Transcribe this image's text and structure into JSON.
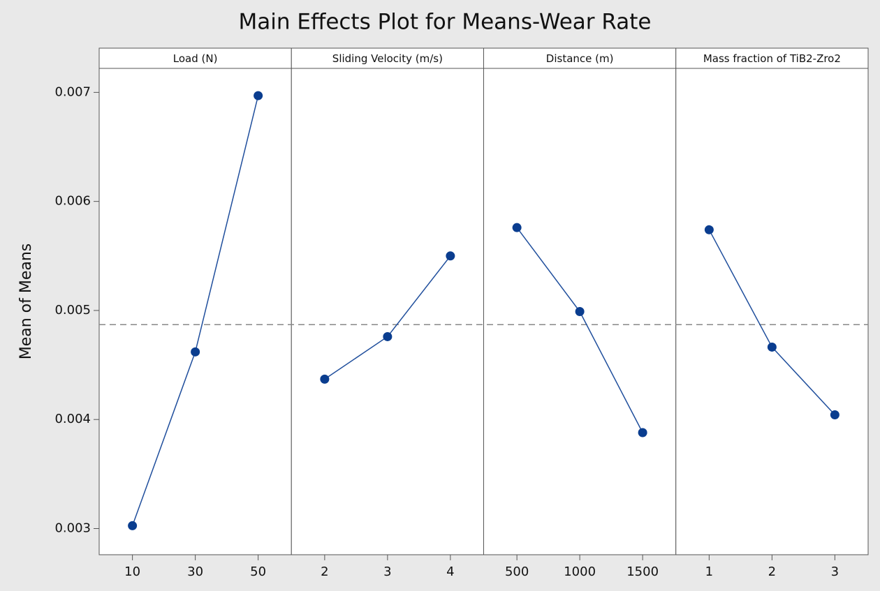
{
  "chart_data": {
    "type": "line",
    "title": "Main Effects Plot for Means-Wear Rate",
    "y_label": "Mean of Means",
    "ylim": [
      0.00276,
      0.00722
    ],
    "yticks": [
      0.003,
      0.004,
      0.005,
      0.006,
      0.007
    ],
    "reference_line": 0.00487,
    "color": "#1f4e9c",
    "marker_color": "#0a3d8f",
    "panels": [
      {
        "title": "Load (N)",
        "categories": [
          "10",
          "30",
          "50"
        ],
        "values": [
          0.003026,
          0.00462,
          0.00697
        ]
      },
      {
        "title": "Sliding Velocity (m/s)",
        "categories": [
          "2",
          "3",
          "4"
        ],
        "values": [
          0.00437,
          0.00476,
          0.0055
        ]
      },
      {
        "title": "Distance (m)",
        "categories": [
          "500",
          "1000",
          "1500"
        ],
        "values": [
          0.00576,
          0.00499,
          0.00388
        ]
      },
      {
        "title": "Mass fraction of TiB2-Zro2",
        "categories": [
          "1",
          "2",
          "3"
        ],
        "values": [
          0.00574,
          0.004664,
          0.004043
        ]
      }
    ]
  }
}
